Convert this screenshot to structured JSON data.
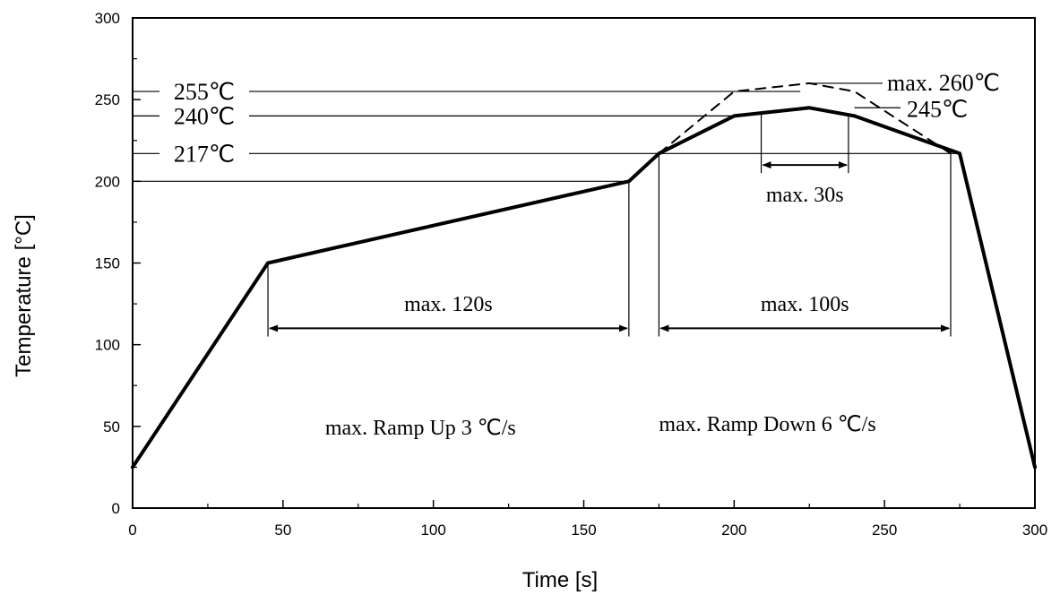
{
  "chart_data": {
    "type": "line",
    "xlabel": "Time [s]",
    "ylabel": "Temperature [°C]",
    "xlim": [
      0,
      300
    ],
    "ylim": [
      0,
      300
    ],
    "x_ticks": [
      0,
      50,
      100,
      150,
      200,
      250,
      300
    ],
    "y_ticks": [
      0,
      50,
      100,
      150,
      200,
      250,
      300
    ],
    "series": [
      {
        "style": "solid",
        "x": [
          0,
          45,
          165,
          175,
          200,
          225,
          240,
          275,
          300
        ],
        "y": [
          25,
          150,
          200,
          217,
          240,
          245,
          240,
          217,
          25
        ]
      },
      {
        "style": "dashed",
        "x": [
          175,
          200,
          225,
          240,
          272
        ],
        "y": [
          217,
          255,
          260,
          255,
          217
        ]
      }
    ],
    "reference_lines": [
      {
        "y": 255,
        "label": "255℃",
        "x_end": 222
      },
      {
        "y": 240,
        "label": "240℃",
        "x_end": 200
      },
      {
        "y": 217,
        "label": "217℃",
        "x_end": 275
      },
      {
        "y": 200,
        "label": "",
        "x_end": 165
      }
    ],
    "peak_labels": [
      {
        "label": "max. 260℃",
        "y": 260,
        "x_line_start": 225
      },
      {
        "label": "245℃",
        "y": 245,
        "x_line_start": 240
      }
    ],
    "intervals": [
      {
        "label": "max. 120s",
        "x_start": 45,
        "x_end": 165,
        "y": 110,
        "label_y": 125
      },
      {
        "label": "max. 100s",
        "x_start": 175,
        "x_end": 272,
        "y": 110,
        "label_y": 125
      },
      {
        "label": "max. 30s",
        "x_start": 209,
        "x_end": 238,
        "y": 210,
        "label_y": 192
      }
    ],
    "annotations": [
      {
        "text": "max. Ramp Up 3 ℃/s",
        "x": 64,
        "y": 50
      },
      {
        "text": "max. Ramp Down 6 ℃/s",
        "x": 175,
        "y": 52
      }
    ]
  }
}
